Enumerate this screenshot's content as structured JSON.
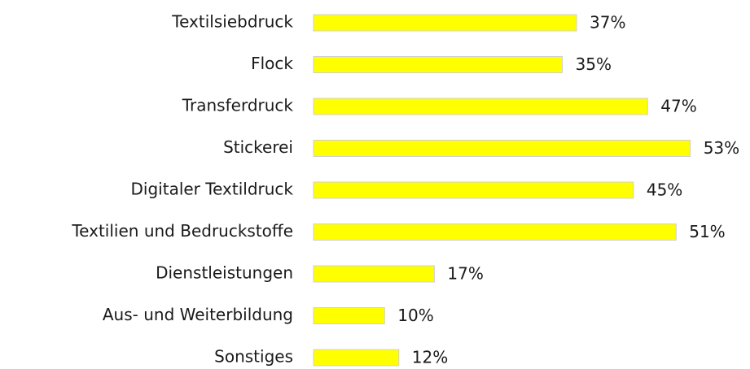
{
  "chart_data": {
    "type": "bar",
    "categories": [
      "Textilsiebdruck",
      "Flock",
      "Transferdruck",
      "Stickerei",
      "Digitaler Textildruck",
      "Textilien und Bedruckstoffe",
      "Dienstleistungen",
      "Aus- und Weiterbildung",
      "Sonstiges"
    ],
    "values": [
      37,
      35,
      47,
      53,
      45,
      51,
      17,
      10,
      12
    ],
    "value_labels": [
      "37%",
      "35%",
      "47%",
      "53%",
      "45%",
      "51%",
      "17%",
      "10%",
      "12%"
    ],
    "color": "#ffff00"
  }
}
